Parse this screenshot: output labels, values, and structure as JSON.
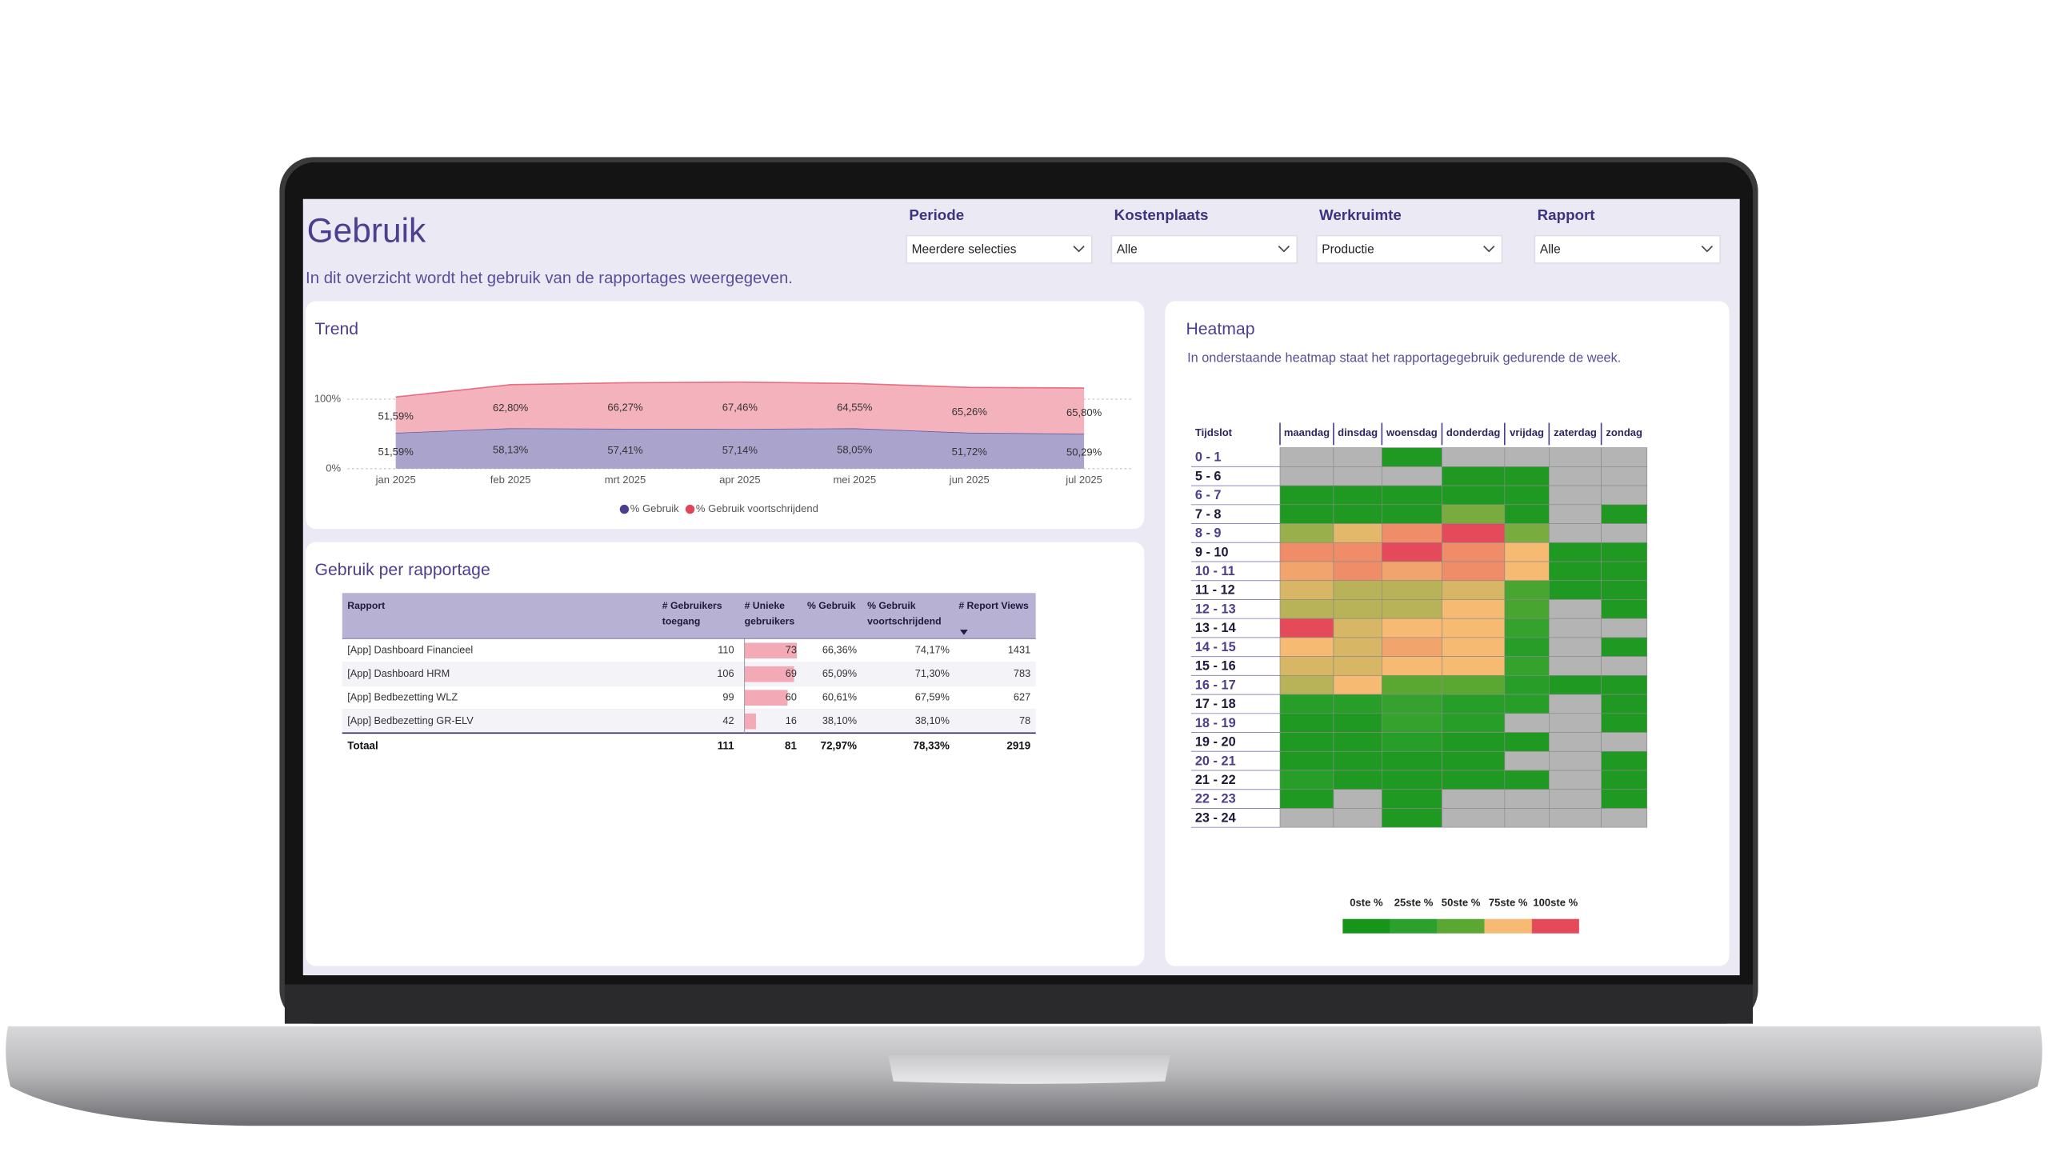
{
  "header": {
    "title": "Gebruik",
    "subtitle": "In dit overzicht wordt het gebruik van de rapportages weergegeven."
  },
  "filters": [
    {
      "label": "Periode",
      "value": "Meerdere selecties"
    },
    {
      "label": "Kostenplaats",
      "value": "Alle"
    },
    {
      "label": "Werkruimte",
      "value": "Productie"
    },
    {
      "label": "Rapport",
      "value": "Alle"
    }
  ],
  "chart_data": [
    {
      "type": "area",
      "stacked": true,
      "title": "Trend",
      "categories": [
        "jan 2025",
        "feb 2025",
        "mrt 2025",
        "apr 2025",
        "mei 2025",
        "jun 2025",
        "jul 2025"
      ],
      "series": [
        {
          "name": "% Gebruik",
          "color": "#4b3f8f",
          "fill": "#aaa3cc",
          "values": [
            51.59,
            58.13,
            57.41,
            57.14,
            58.05,
            51.72,
            50.29
          ],
          "value_labels": [
            "51,59%",
            "58,13%",
            "57,41%",
            "57,14%",
            "58,05%",
            "51,72%",
            "50,29%"
          ]
        },
        {
          "name": "% Gebruik voortschrijdend",
          "color": "#e0455a",
          "fill": "#f4b2bd",
          "values": [
            51.59,
            62.8,
            66.27,
            67.46,
            64.55,
            65.26,
            65.8
          ],
          "value_labels": [
            "51,59%",
            "62,80%",
            "66,27%",
            "67,46%",
            "64,55%",
            "65,26%",
            "65,80%"
          ]
        }
      ],
      "ylim": [
        0,
        130
      ],
      "yticks": [
        {
          "value": 0,
          "label": "0%"
        },
        {
          "value": 100,
          "label": "100%"
        }
      ],
      "grid": true,
      "legend": "bottom"
    },
    {
      "type": "heatmap",
      "title": "Heatmap",
      "subtitle": "In onderstaande heatmap staat het rapportagegebruik gedurende de week.",
      "row_header": "Tijdslot",
      "categories": [
        "maandag",
        "dinsdag",
        "woensdag",
        "donderdag",
        "vrijdag",
        "zaterdag",
        "zondag"
      ],
      "rows": [
        "0 - 1",
        "5 - 6",
        "6 - 7",
        "7 - 8",
        "8 - 9",
        "9 - 10",
        "10 - 11",
        "11 - 12",
        "12 - 13",
        "13 - 14",
        "14 - 15",
        "15 - 16",
        "16 - 17",
        "17 - 18",
        "18 - 19",
        "19 - 20",
        "20 - 21",
        "21 - 22",
        "22 - 23",
        "23 - 24"
      ],
      "values": [
        [
          null,
          null,
          10,
          null,
          null,
          null,
          null
        ],
        [
          null,
          null,
          null,
          10,
          10,
          null,
          null
        ],
        [
          10,
          10,
          10,
          10,
          10,
          null,
          null
        ],
        [
          10,
          10,
          10,
          55,
          10,
          null,
          10
        ],
        [
          60,
          72,
          85,
          100,
          55,
          null,
          null
        ],
        [
          85,
          85,
          100,
          85,
          75,
          10,
          10
        ],
        [
          80,
          85,
          80,
          85,
          75,
          10,
          10
        ],
        [
          70,
          65,
          65,
          70,
          40,
          10,
          10
        ],
        [
          65,
          65,
          65,
          75,
          40,
          null,
          10
        ],
        [
          100,
          70,
          75,
          75,
          30,
          null,
          null
        ],
        [
          75,
          70,
          80,
          75,
          20,
          null,
          10
        ],
        [
          70,
          70,
          75,
          75,
          30,
          null,
          null
        ],
        [
          65,
          75,
          50,
          50,
          20,
          10,
          10
        ],
        [
          20,
          20,
          30,
          20,
          20,
          null,
          10
        ],
        [
          10,
          10,
          30,
          20,
          null,
          null,
          10
        ],
        [
          10,
          10,
          20,
          10,
          10,
          null,
          null
        ],
        [
          10,
          10,
          10,
          10,
          null,
          null,
          10
        ],
        [
          20,
          10,
          10,
          10,
          10,
          null,
          10
        ],
        [
          10,
          null,
          10,
          null,
          null,
          null,
          10
        ],
        [
          null,
          null,
          10,
          null,
          null,
          null,
          null
        ]
      ],
      "zlim": [
        0,
        100
      ],
      "empty_color": "#b4b4b4",
      "legend": [
        {
          "label": "0ste %",
          "color": "#17941a"
        },
        {
          "label": "25ste %",
          "color": "#2ba02c"
        },
        {
          "label": "50ste %",
          "color": "#5aa832"
        },
        {
          "label": "75ste %",
          "color": "#f6ba72"
        },
        {
          "label": "100ste %",
          "color": "#e44a5a"
        }
      ]
    }
  ],
  "table": {
    "title": "Gebruik per rapportage",
    "columns": [
      [
        "Rapport"
      ],
      [
        "# Gebruikers",
        "toegang"
      ],
      [
        "# Unieke",
        "gebruikers"
      ],
      [
        "% Gebruik"
      ],
      [
        "% Gebruik",
        "voortschrijdend"
      ],
      [
        "# Report Views"
      ]
    ],
    "rows": [
      [
        "[App] Dashboard Financieel",
        110,
        73,
        "66,36%",
        "74,17%",
        1431
      ],
      [
        "[App] Dashboard HRM",
        106,
        69,
        "65,09%",
        "71,30%",
        783
      ],
      [
        "[App] Bedbezetting WLZ",
        99,
        60,
        "60,61%",
        "67,59%",
        627
      ],
      [
        "[App] Bedbezetting GR-ELV",
        42,
        16,
        "38,10%",
        "38,10%",
        78
      ]
    ],
    "total": [
      "Totaal",
      111,
      81,
      "72,97%",
      "78,33%",
      2919
    ]
  }
}
